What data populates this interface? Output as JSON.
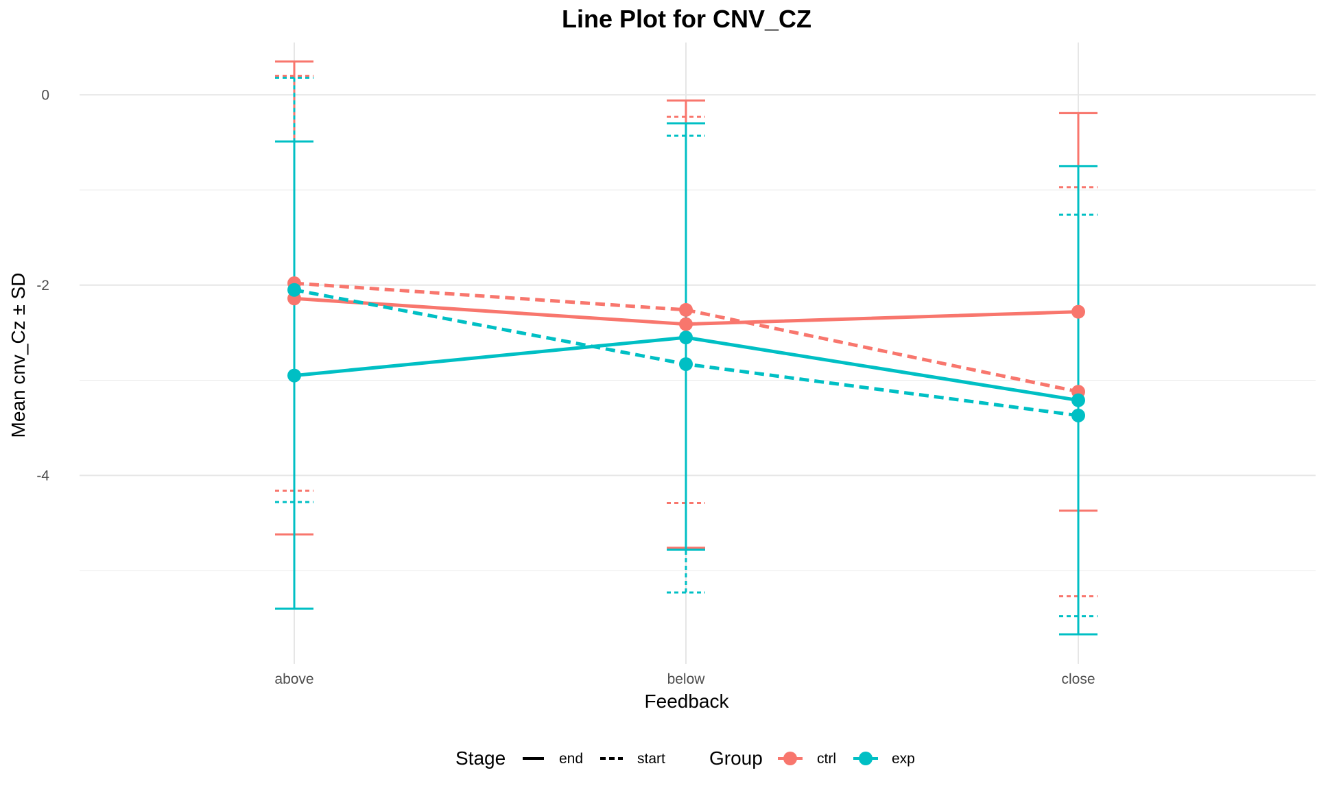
{
  "chart_data": {
    "type": "line",
    "title": "Line Plot for CNV_CZ",
    "xlabel": "Feedback",
    "ylabel": "Mean cnv_Cz ± SD",
    "categories": [
      "above",
      "below",
      "close"
    ],
    "y_ticks": [
      0,
      -2,
      -4
    ],
    "y_tick_labels": [
      "0",
      "-2",
      "-4"
    ],
    "ylim": [
      -5.98,
      0.55
    ],
    "grid": true,
    "legend_position": "bottom",
    "legend": {
      "stage_title": "Stage",
      "stage_items": [
        {
          "label": "end",
          "linetype": "solid"
        },
        {
          "label": "start",
          "linetype": "dashed"
        }
      ],
      "group_title": "Group",
      "group_items": [
        {
          "label": "ctrl",
          "color": "#F8766D"
        },
        {
          "label": "exp",
          "color": "#00BFC4"
        }
      ]
    },
    "series": [
      {
        "group": "ctrl",
        "stage": "end",
        "color": "#F8766D",
        "linetype": "solid",
        "mean": [
          -2.14,
          -2.41,
          -2.28
        ],
        "upper": [
          0.35,
          -0.06,
          -0.19
        ],
        "lower": [
          -4.62,
          -4.76,
          -4.37
        ]
      },
      {
        "group": "ctrl",
        "stage": "start",
        "color": "#F8766D",
        "linetype": "dashed",
        "mean": [
          -1.98,
          -2.26,
          -3.12
        ],
        "upper": [
          0.2,
          -0.23,
          -0.97
        ],
        "lower": [
          -4.16,
          -4.29,
          -5.27
        ]
      },
      {
        "group": "exp",
        "stage": "end",
        "color": "#00BFC4",
        "linetype": "solid",
        "mean": [
          -2.95,
          -2.55,
          -3.21
        ],
        "upper": [
          -0.49,
          -0.3,
          -0.75
        ],
        "lower": [
          -5.4,
          -4.78,
          -5.67
        ]
      },
      {
        "group": "exp",
        "stage": "start",
        "color": "#00BFC4",
        "linetype": "dashed",
        "mean": [
          -2.05,
          -2.83,
          -3.37
        ],
        "upper": [
          0.18,
          -0.43,
          -1.26
        ],
        "lower": [
          -4.28,
          -5.23,
          -5.48
        ]
      }
    ]
  }
}
